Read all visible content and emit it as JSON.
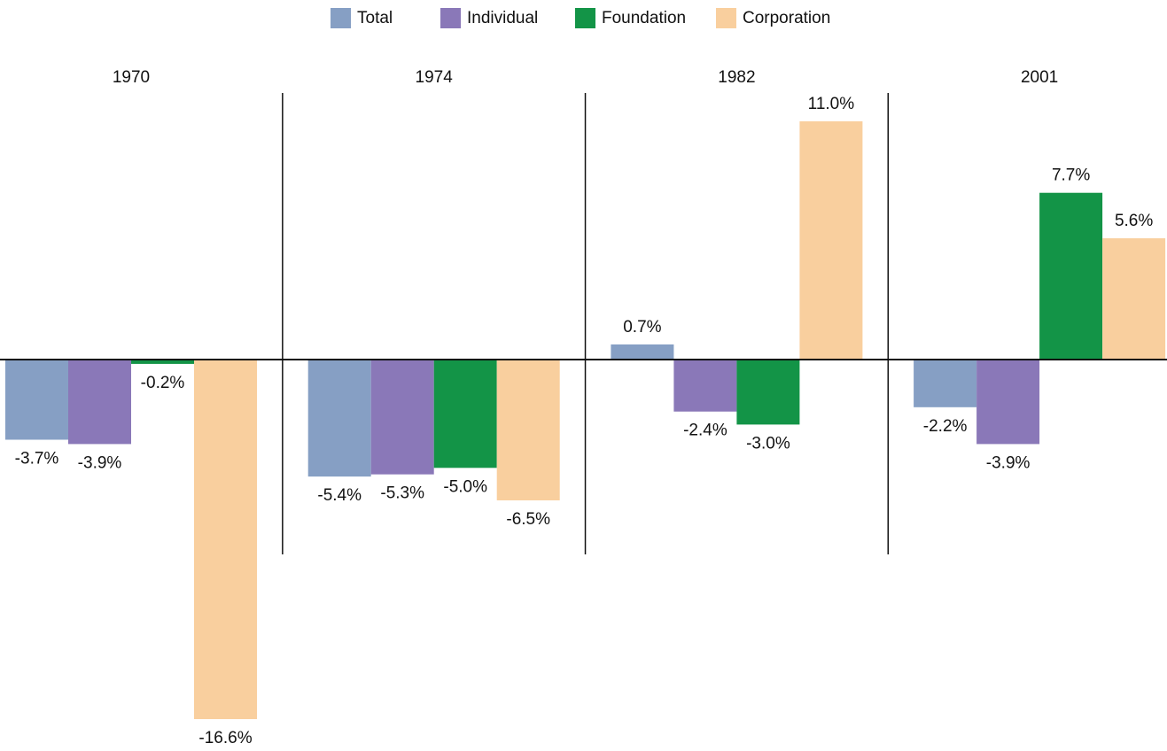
{
  "chart_data": {
    "type": "bar",
    "categories": [
      "1970",
      "1974",
      "1982",
      "2001"
    ],
    "series": [
      {
        "name": "Total",
        "color": "#869fc4",
        "values": [
          -3.7,
          -5.4,
          0.7,
          -2.2
        ],
        "value_labels": [
          "-3.7%",
          "-5.4%",
          "0.7%",
          "-2.2%"
        ]
      },
      {
        "name": "Individual",
        "color": "#8a78b8",
        "values": [
          -3.9,
          -5.3,
          -2.4,
          -3.9
        ],
        "value_labels": [
          "-3.9%",
          "-5.3%",
          "-2.4%",
          "-3.9%"
        ]
      },
      {
        "name": "Foundation",
        "color": "#139447",
        "values": [
          -0.2,
          -5.0,
          -3.0,
          7.7
        ],
        "value_labels": [
          "-0.2%",
          "-5.0%",
          "-3.0%",
          "7.7%"
        ]
      },
      {
        "name": "Corporation",
        "color": "#f9cf9e",
        "values": [
          -16.6,
          -6.5,
          11.0,
          5.6
        ],
        "value_labels": [
          "-16.6%",
          "-6.5%",
          "11.0%",
          "5.6%"
        ]
      }
    ],
    "legend": "top"
  }
}
